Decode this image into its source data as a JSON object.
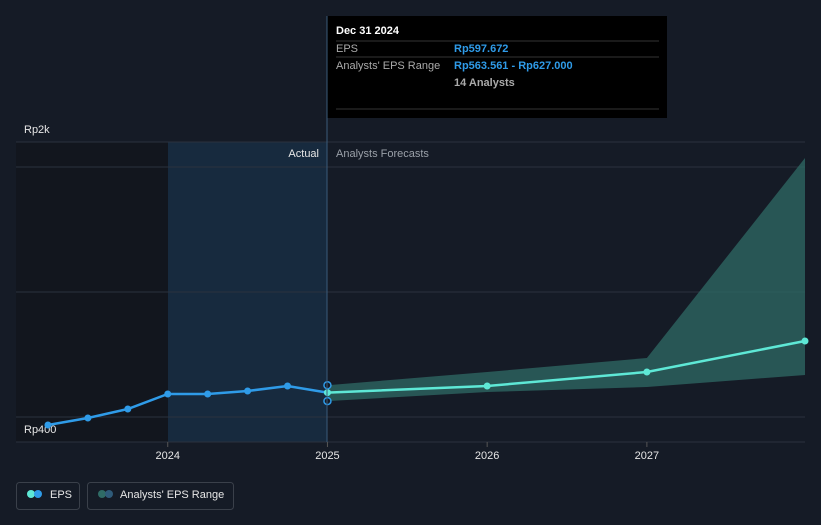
{
  "chart_data": {
    "type": "line",
    "xlim": [
      2023.05,
      2027.99
    ],
    "ylim": [
      400,
      1600
    ],
    "xticks": [
      2024,
      2025,
      2026,
      2027
    ],
    "yticks": [
      {
        "value": 400,
        "label": "Rp400"
      },
      {
        "value": 1600,
        "label": "Rp2k"
      }
    ],
    "actual_label": "Actual",
    "forecast_label": "Analysts Forecasts",
    "eps": {
      "name": "EPS",
      "color": "#2f9be8",
      "x": [
        2023.25,
        2023.5,
        2023.75,
        2024.0,
        2024.25,
        2024.5,
        2024.75,
        2025.0
      ],
      "values": [
        468,
        496,
        532,
        592,
        592,
        604,
        624,
        597.672
      ]
    },
    "forecast": {
      "color": "#5ee8d6",
      "x": [
        2025.0,
        2026.0,
        2027.0,
        2027.99
      ],
      "values": [
        597.672,
        624,
        680,
        804
      ]
    },
    "range": {
      "name": "Analysts' EPS Range",
      "color": "#2f6b66",
      "x": [
        2025.0,
        2026.0,
        2027.0,
        2027.99
      ],
      "low": [
        563.561,
        600,
        620,
        668
      ],
      "high": [
        627,
        680,
        736,
        1536
      ]
    },
    "tooltip": {
      "date": "Dec 31 2024",
      "rows": [
        {
          "label": "EPS",
          "value": "Rp597.672"
        },
        {
          "label": "Analysts' EPS Range",
          "value": "Rp563.561 - Rp627.000",
          "note": "14 Analysts"
        }
      ]
    }
  }
}
